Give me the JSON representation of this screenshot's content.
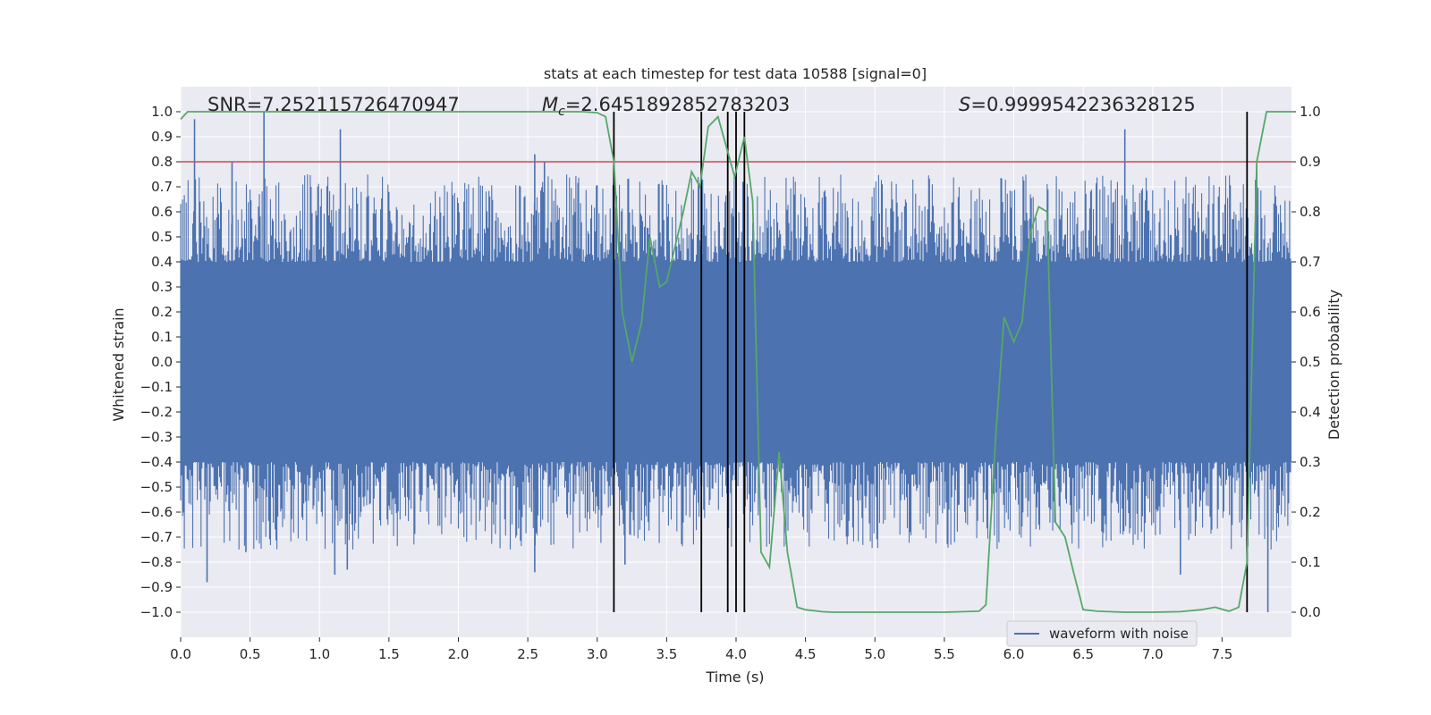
{
  "chart_data": {
    "type": "line",
    "title": "stats at each timestep for test data 10588 [signal=0]",
    "xlabel": "Time (s)",
    "ylabel": "Whitened strain",
    "y2label": "Detection probability",
    "xlim": [
      0.0,
      8.0
    ],
    "ylim": [
      -1.1,
      1.1
    ],
    "y2lim": [
      -0.05,
      1.05
    ],
    "x_ticks": [
      "0.0",
      "0.5",
      "1.0",
      "1.5",
      "2.0",
      "2.5",
      "3.0",
      "3.5",
      "4.0",
      "4.5",
      "5.0",
      "5.5",
      "6.0",
      "6.5",
      "7.0",
      "7.5"
    ],
    "y_ticks": [
      "1.0",
      "0.9",
      "0.8",
      "0.7",
      "0.6",
      "0.5",
      "0.4",
      "0.3",
      "0.2",
      "0.1",
      "0.0",
      "−0.1",
      "−0.2",
      "−0.3",
      "−0.4",
      "−0.5",
      "−0.6",
      "−0.7",
      "−0.8",
      "−0.9",
      "−1.0"
    ],
    "y2_ticks": [
      "1.0",
      "0.9",
      "0.8",
      "0.7",
      "0.6",
      "0.5",
      "0.4",
      "0.3",
      "0.2",
      "0.1",
      "0.0"
    ],
    "grid": true,
    "legend": {
      "placement": "lower-right",
      "entries": [
        "waveform with noise"
      ]
    },
    "annotations": {
      "snr": "SNR=7.252115726470947",
      "mc_sym": "M",
      "mc_sub": "c",
      "mc_val": "=2.6451892852783203",
      "s_sym": "S",
      "s_val": "=0.9999542236328125"
    },
    "threshold": {
      "value": 0.9,
      "axis": "right",
      "color": "#c44e52"
    },
    "vertical_lines": [
      3.12,
      3.75,
      3.94,
      4.0,
      4.06,
      7.68
    ],
    "noise": {
      "color": "#4c72b0",
      "base_envelope": 0.4,
      "spikes": [
        [
          0.1,
          0.97
        ],
        [
          0.19,
          -0.88
        ],
        [
          0.6,
          1.0
        ],
        [
          0.37,
          0.8
        ],
        [
          0.47,
          -0.76
        ],
        [
          1.15,
          0.93
        ],
        [
          1.11,
          -0.85
        ],
        [
          1.2,
          -0.83
        ],
        [
          2.55,
          0.83
        ],
        [
          2.62,
          0.8
        ],
        [
          2.55,
          -0.84
        ],
        [
          3.12,
          0.8
        ],
        [
          3.2,
          -0.81
        ],
        [
          6.8,
          0.93
        ],
        [
          7.2,
          -0.85
        ],
        [
          7.68,
          -0.79
        ],
        [
          7.75,
          0.79
        ],
        [
          7.83,
          -1.0
        ],
        [
          4.05,
          0.72
        ]
      ]
    },
    "series": [
      {
        "name": "waveform with noise",
        "color": "#4c72b0"
      },
      {
        "color": "#55a868",
        "x": [
          0.0,
          0.05,
          0.1,
          0.3,
          0.6,
          1.0,
          1.5,
          2.0,
          2.5,
          2.9,
          3.0,
          3.06,
          3.12,
          3.18,
          3.25,
          3.32,
          3.38,
          3.45,
          3.5,
          3.56,
          3.62,
          3.68,
          3.74,
          3.8,
          3.87,
          3.93,
          3.99,
          4.06,
          4.12,
          4.18,
          4.24,
          4.31,
          4.37,
          4.44,
          4.5,
          4.56,
          4.62,
          4.7,
          4.9,
          5.2,
          5.5,
          5.75,
          5.8,
          5.87,
          5.93,
          6.0,
          6.06,
          6.12,
          6.18,
          6.24,
          6.3,
          6.37,
          6.43,
          6.5,
          6.6,
          6.8,
          7.0,
          7.2,
          7.35,
          7.45,
          7.55,
          7.62,
          7.68,
          7.75,
          7.82,
          7.9,
          8.0
        ],
        "y": [
          0.985,
          1.0,
          1.0,
          1.0,
          1.0,
          1.0,
          1.0,
          1.0,
          1.0,
          1.0,
          0.998,
          0.99,
          0.9,
          0.6,
          0.5,
          0.58,
          0.75,
          0.65,
          0.66,
          0.73,
          0.8,
          0.88,
          0.85,
          0.97,
          0.99,
          0.93,
          0.87,
          0.95,
          0.82,
          0.12,
          0.09,
          0.32,
          0.12,
          0.01,
          0.005,
          0.003,
          0.001,
          0.0,
          0.0,
          0.0,
          0.0,
          0.002,
          0.015,
          0.35,
          0.59,
          0.54,
          0.58,
          0.76,
          0.81,
          0.8,
          0.18,
          0.15,
          0.08,
          0.005,
          0.002,
          0.0,
          0.0,
          0.001,
          0.005,
          0.01,
          0.002,
          0.01,
          0.1,
          0.9,
          1.0,
          1.0,
          1.0
        ]
      }
    ]
  }
}
